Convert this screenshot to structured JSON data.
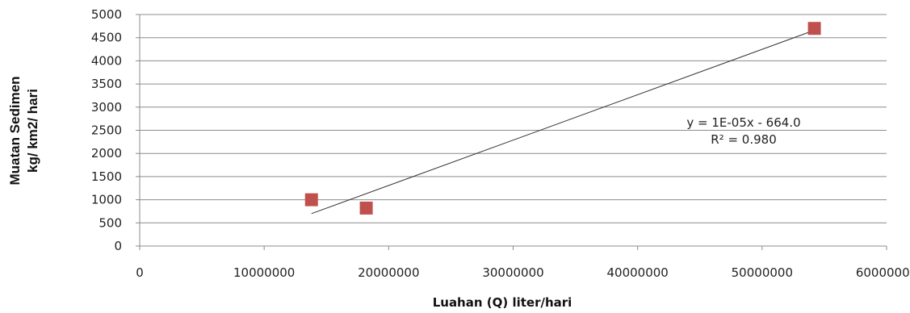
{
  "chart_data": {
    "type": "scatter",
    "title": "",
    "xlabel": "Luahan (Q)  liter/hari",
    "ylabel_lines": [
      "Muatan Sedimen",
      "kg/ km2/ hari"
    ],
    "xlim": [
      0,
      60000000
    ],
    "ylim": [
      0,
      5000
    ],
    "x_ticks": [
      0,
      10000000,
      20000000,
      30000000,
      40000000,
      50000000,
      60000000
    ],
    "x_tick_labels": [
      "0",
      "10000000",
      "20000000",
      "30000000",
      "40000000",
      "50000000",
      "60000000"
    ],
    "y_ticks": [
      0,
      500,
      1000,
      1500,
      2000,
      2500,
      3000,
      3500,
      4000,
      4500,
      5000
    ],
    "y_tick_labels": [
      "0",
      "500",
      "1000",
      "1500",
      "2000",
      "2500",
      "3000",
      "3500",
      "4000",
      "4500",
      "5000"
    ],
    "grid": "horizontal",
    "marker_color": "#c0504d",
    "series": [
      {
        "x": [
          13800000,
          18200000,
          54200000
        ],
        "y": [
          1000,
          820,
          4700
        ]
      }
    ],
    "trendline": {
      "x": [
        13800000,
        54200000
      ],
      "y": [
        700,
        4660
      ],
      "equation": "y = 1E-05x - 664.0",
      "r2": "R² = 0.980"
    }
  }
}
